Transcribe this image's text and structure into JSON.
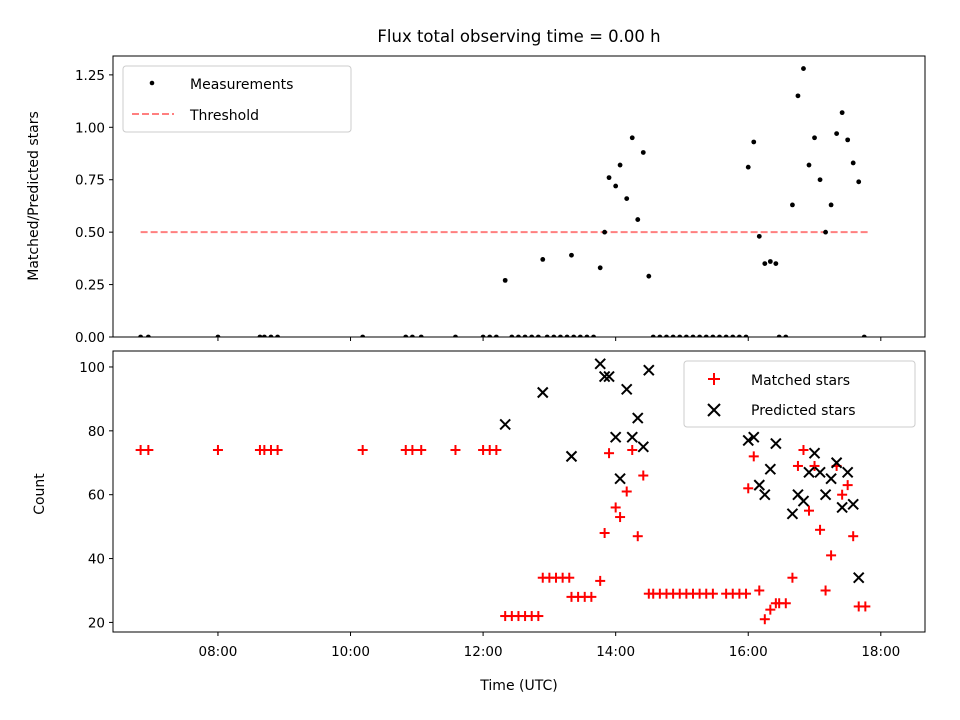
{
  "chart_data": [
    {
      "type": "scatter",
      "title": "Flux total observing time = 0.00 h",
      "xlabel": "",
      "ylabel": "Matched/Predicted stars",
      "xlim": [
        "06:25",
        "18:40"
      ],
      "ylim": [
        0,
        1.34
      ],
      "yticks": [
        "0.00",
        "0.25",
        "0.50",
        "0.75",
        "1.00",
        "1.25"
      ],
      "grid": false,
      "legend_position": "top-left",
      "series": [
        {
          "name": "Measurements",
          "kind": "points",
          "color": "#000000",
          "points": [
            [
              "06:50",
              0
            ],
            [
              "06:57",
              0
            ],
            [
              "08:00",
              0
            ],
            [
              "08:38",
              0
            ],
            [
              "08:42",
              0
            ],
            [
              "08:48",
              0
            ],
            [
              "08:54",
              0
            ],
            [
              "10:11",
              0
            ],
            [
              "10:50",
              0
            ],
            [
              "10:56",
              0
            ],
            [
              "11:04",
              0
            ],
            [
              "11:35",
              0
            ],
            [
              "12:00",
              0
            ],
            [
              "12:06",
              0
            ],
            [
              "12:12",
              0
            ],
            [
              "12:20",
              0.27
            ],
            [
              "12:26",
              0
            ],
            [
              "12:32",
              0
            ],
            [
              "12:38",
              0
            ],
            [
              "12:44",
              0
            ],
            [
              "12:50",
              0
            ],
            [
              "12:54",
              0.37
            ],
            [
              "12:58",
              0
            ],
            [
              "13:04",
              0
            ],
            [
              "13:10",
              0
            ],
            [
              "13:16",
              0
            ],
            [
              "13:22",
              0
            ],
            [
              "13:20",
              0.39
            ],
            [
              "13:28",
              0
            ],
            [
              "13:34",
              0
            ],
            [
              "13:40",
              0
            ],
            [
              "13:46",
              0.33
            ],
            [
              "13:50",
              0.5
            ],
            [
              "13:54",
              0.76
            ],
            [
              "14:00",
              0.72
            ],
            [
              "14:04",
              0.82
            ],
            [
              "14:10",
              0.66
            ],
            [
              "14:15",
              0.95
            ],
            [
              "14:20",
              0.56
            ],
            [
              "14:25",
              0.88
            ],
            [
              "14:30",
              0.29
            ],
            [
              "14:34",
              0
            ],
            [
              "14:40",
              0
            ],
            [
              "14:46",
              0
            ],
            [
              "14:52",
              0
            ],
            [
              "14:58",
              0
            ],
            [
              "15:04",
              0
            ],
            [
              "15:10",
              0
            ],
            [
              "15:16",
              0
            ],
            [
              "15:22",
              0
            ],
            [
              "15:28",
              0
            ],
            [
              "15:34",
              0
            ],
            [
              "15:40",
              0
            ],
            [
              "15:46",
              0
            ],
            [
              "15:52",
              0
            ],
            [
              "15:58",
              0
            ],
            [
              "16:00",
              0.81
            ],
            [
              "16:05",
              0.93
            ],
            [
              "16:10",
              0.48
            ],
            [
              "16:15",
              0.35
            ],
            [
              "16:20",
              0.36
            ],
            [
              "16:25",
              0.35
            ],
            [
              "16:28",
              0
            ],
            [
              "16:34",
              0
            ],
            [
              "16:40",
              0.63
            ],
            [
              "16:45",
              1.15
            ],
            [
              "16:50",
              1.28
            ],
            [
              "16:55",
              0.82
            ],
            [
              "17:00",
              0.95
            ],
            [
              "17:05",
              0.75
            ],
            [
              "17:10",
              0.5
            ],
            [
              "17:15",
              0.63
            ],
            [
              "17:20",
              0.97
            ],
            [
              "17:25",
              1.07
            ],
            [
              "17:30",
              0.94
            ],
            [
              "17:35",
              0.83
            ],
            [
              "17:40",
              0.74
            ],
            [
              "17:45",
              0
            ]
          ]
        },
        {
          "name": "Threshold",
          "kind": "dashed-line",
          "color": "#ff7f7f",
          "points": [
            [
              "06:50",
              0.5
            ],
            [
              "17:50",
              0.5
            ]
          ]
        }
      ]
    },
    {
      "type": "scatter",
      "title": "",
      "xlabel": "Time (UTC)",
      "ylabel": "Count",
      "xlim": [
        "06:25",
        "18:40"
      ],
      "ylim": [
        17,
        105
      ],
      "yticks": [
        "20",
        "40",
        "60",
        "80",
        "100"
      ],
      "xticks": [
        "08:00",
        "10:00",
        "12:00",
        "14:00",
        "16:00",
        "18:00"
      ],
      "grid": false,
      "legend_position": "top-right",
      "series": [
        {
          "name": "Matched stars",
          "marker": "plus",
          "color": "#ff0000",
          "points": [
            [
              "06:50",
              74
            ],
            [
              "06:57",
              74
            ],
            [
              "08:00",
              74
            ],
            [
              "08:38",
              74
            ],
            [
              "08:42",
              74
            ],
            [
              "08:48",
              74
            ],
            [
              "08:54",
              74
            ],
            [
              "10:11",
              74
            ],
            [
              "10:50",
              74
            ],
            [
              "10:56",
              74
            ],
            [
              "11:04",
              74
            ],
            [
              "11:35",
              74
            ],
            [
              "12:00",
              74
            ],
            [
              "12:06",
              74
            ],
            [
              "12:12",
              74
            ],
            [
              "12:20",
              22
            ],
            [
              "12:26",
              22
            ],
            [
              "12:32",
              22
            ],
            [
              "12:38",
              22
            ],
            [
              "12:44",
              22
            ],
            [
              "12:50",
              22
            ],
            [
              "12:54",
              34
            ],
            [
              "13:00",
              34
            ],
            [
              "13:06",
              34
            ],
            [
              "13:12",
              34
            ],
            [
              "13:18",
              34
            ],
            [
              "13:20",
              28
            ],
            [
              "13:26",
              28
            ],
            [
              "13:32",
              28
            ],
            [
              "13:38",
              28
            ],
            [
              "13:46",
              33
            ],
            [
              "13:50",
              48
            ],
            [
              "13:54",
              73
            ],
            [
              "14:00",
              56
            ],
            [
              "14:04",
              53
            ],
            [
              "14:10",
              61
            ],
            [
              "14:15",
              74
            ],
            [
              "14:20",
              47
            ],
            [
              "14:25",
              66
            ],
            [
              "14:30",
              29
            ],
            [
              "14:34",
              29
            ],
            [
              "14:40",
              29
            ],
            [
              "14:46",
              29
            ],
            [
              "14:52",
              29
            ],
            [
              "14:58",
              29
            ],
            [
              "15:04",
              29
            ],
            [
              "15:10",
              29
            ],
            [
              "15:16",
              29
            ],
            [
              "15:22",
              29
            ],
            [
              "15:28",
              29
            ],
            [
              "15:40",
              29
            ],
            [
              "15:46",
              29
            ],
            [
              "15:52",
              29
            ],
            [
              "15:58",
              29
            ],
            [
              "16:00",
              62
            ],
            [
              "16:05",
              72
            ],
            [
              "16:10",
              30
            ],
            [
              "16:15",
              21
            ],
            [
              "16:20",
              24
            ],
            [
              "16:25",
              26
            ],
            [
              "16:28",
              26
            ],
            [
              "16:34",
              26
            ],
            [
              "16:40",
              34
            ],
            [
              "16:45",
              69
            ],
            [
              "16:50",
              74
            ],
            [
              "16:55",
              55
            ],
            [
              "17:00",
              69
            ],
            [
              "17:05",
              49
            ],
            [
              "17:10",
              30
            ],
            [
              "17:15",
              41
            ],
            [
              "17:20",
              69
            ],
            [
              "17:25",
              60
            ],
            [
              "17:30",
              63
            ],
            [
              "17:35",
              47
            ],
            [
              "17:40",
              25
            ],
            [
              "17:46",
              25
            ]
          ]
        },
        {
          "name": "Predicted stars",
          "marker": "x",
          "color": "#000000",
          "points": [
            [
              "12:20",
              82
            ],
            [
              "12:54",
              92
            ],
            [
              "13:20",
              72
            ],
            [
              "13:46",
              101
            ],
            [
              "13:50",
              97
            ],
            [
              "13:54",
              97
            ],
            [
              "14:00",
              78
            ],
            [
              "14:04",
              65
            ],
            [
              "14:10",
              93
            ],
            [
              "14:15",
              78
            ],
            [
              "14:20",
              84
            ],
            [
              "14:25",
              75
            ],
            [
              "14:30",
              99
            ],
            [
              "16:00",
              77
            ],
            [
              "16:05",
              78
            ],
            [
              "16:10",
              63
            ],
            [
              "16:15",
              60
            ],
            [
              "16:20",
              68
            ],
            [
              "16:25",
              76
            ],
            [
              "16:40",
              54
            ],
            [
              "16:45",
              60
            ],
            [
              "16:50",
              58
            ],
            [
              "16:55",
              67
            ],
            [
              "17:00",
              73
            ],
            [
              "17:05",
              67
            ],
            [
              "17:10",
              60
            ],
            [
              "17:15",
              65
            ],
            [
              "17:20",
              70
            ],
            [
              "17:25",
              56
            ],
            [
              "17:30",
              67
            ],
            [
              "17:35",
              57
            ],
            [
              "17:40",
              34
            ]
          ]
        }
      ]
    }
  ]
}
